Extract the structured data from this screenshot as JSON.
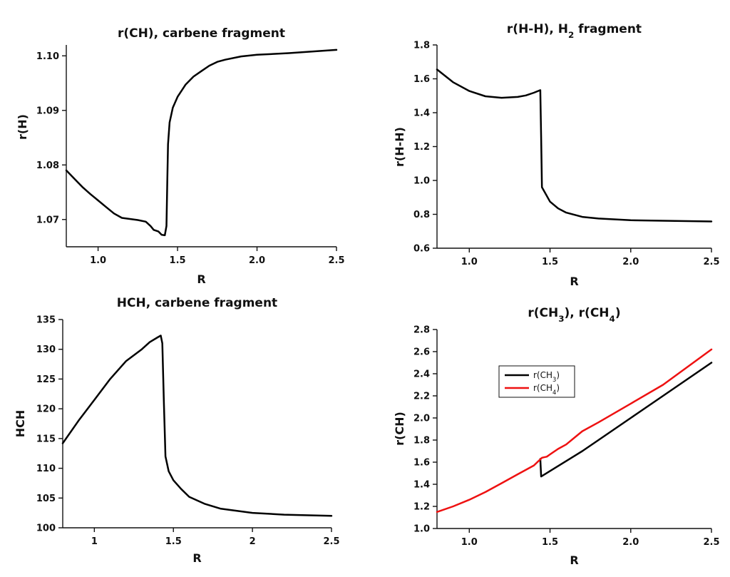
{
  "chart_data": [
    {
      "type": "line",
      "title": "r(CH), carbene fragment",
      "xlabel": "R",
      "ylabel": "r(H)",
      "xlim": [
        0.8,
        2.5
      ],
      "ylim": [
        1.065,
        1.102
      ],
      "xticks": [
        1.0,
        1.5,
        2.0,
        2.5
      ],
      "xtick_labels": [
        "1.0",
        "1.5",
        "2.0",
        "2.5"
      ],
      "yticks": [
        1.07,
        1.08,
        1.09,
        1.1
      ],
      "ytick_labels": [
        "1.07",
        "1.08",
        "1.09",
        "1.10"
      ],
      "series": [
        {
          "name": "r(CH)",
          "color": "#000000",
          "x": [
            0.8,
            0.85,
            0.9,
            0.95,
            1.0,
            1.05,
            1.1,
            1.15,
            1.2,
            1.25,
            1.3,
            1.33,
            1.35,
            1.38,
            1.4,
            1.42,
            1.43,
            1.435,
            1.44,
            1.45,
            1.47,
            1.5,
            1.55,
            1.6,
            1.65,
            1.7,
            1.75,
            1.8,
            1.9,
            2.0,
            2.2,
            2.5
          ],
          "y": [
            1.079,
            1.0775,
            1.076,
            1.0747,
            1.0735,
            1.0723,
            1.0711,
            1.0703,
            1.0701,
            1.0699,
            1.0696,
            1.0688,
            1.0681,
            1.0678,
            1.0672,
            1.0671,
            1.0688,
            1.0765,
            1.0838,
            1.0878,
            1.0905,
            1.0925,
            1.0947,
            1.0962,
            1.0972,
            1.0982,
            1.0989,
            1.0993,
            1.0999,
            1.1002,
            1.1005,
            1.1011
          ]
        }
      ]
    },
    {
      "type": "line",
      "title": "r(H-H), H",
      "title_sub": "2",
      "title_suffix": " fragment",
      "xlabel": "R",
      "ylabel": "r(H-H)",
      "xlim": [
        0.8,
        2.5
      ],
      "ylim": [
        0.6,
        1.8
      ],
      "xticks": [
        1.0,
        1.5,
        2.0,
        2.5
      ],
      "xtick_labels": [
        "1.0",
        "1.5",
        "2.0",
        "2.5"
      ],
      "yticks": [
        0.6,
        0.8,
        1.0,
        1.2,
        1.4,
        1.6,
        1.8
      ],
      "ytick_labels": [
        "0.6",
        "0.8",
        "1.0",
        "1.2",
        "1.4",
        "1.6",
        "1.8"
      ],
      "series": [
        {
          "name": "r(H-H)",
          "color": "#000000",
          "x": [
            0.8,
            0.9,
            1.0,
            1.1,
            1.2,
            1.3,
            1.35,
            1.4,
            1.44,
            1.445,
            1.45,
            1.5,
            1.55,
            1.6,
            1.7,
            1.8,
            2.0,
            2.2,
            2.5
          ],
          "y": [
            1.655,
            1.58,
            1.528,
            1.497,
            1.488,
            1.493,
            1.502,
            1.518,
            1.533,
            1.25,
            0.96,
            0.875,
            0.835,
            0.81,
            0.785,
            0.775,
            0.765,
            0.762,
            0.758
          ]
        }
      ]
    },
    {
      "type": "line",
      "title": "HCH, carbene fragment",
      "xlabel": "R",
      "ylabel": "HCH",
      "xlim": [
        0.8,
        2.5
      ],
      "ylim": [
        100,
        135
      ],
      "xticks": [
        1.0,
        1.5,
        2.0,
        2.5
      ],
      "xtick_labels": [
        "1",
        "1.5",
        "2",
        "2.5"
      ],
      "yticks": [
        100,
        105,
        110,
        115,
        120,
        125,
        130,
        135
      ],
      "ytick_labels": [
        "100",
        "105",
        "110",
        "115",
        "120",
        "125",
        "130",
        "135"
      ],
      "series": [
        {
          "name": "HCH",
          "color": "#000000",
          "x": [
            0.8,
            0.9,
            1.0,
            1.1,
            1.2,
            1.3,
            1.35,
            1.4,
            1.42,
            1.43,
            1.44,
            1.45,
            1.47,
            1.5,
            1.55,
            1.6,
            1.7,
            1.8,
            2.0,
            2.2,
            2.5
          ],
          "y": [
            114.2,
            118.0,
            121.5,
            125.0,
            128.0,
            130.0,
            131.2,
            132.0,
            132.3,
            131.0,
            121.0,
            112.0,
            109.5,
            108.0,
            106.5,
            105.2,
            104.0,
            103.2,
            102.5,
            102.2,
            102.0
          ]
        }
      ]
    },
    {
      "type": "line",
      "title": "r(CH",
      "title_sub": "3",
      "title_mid": "), r(CH",
      "title_sub2": "4",
      "title_suffix": ")",
      "xlabel": "R",
      "ylabel": "r(CH)",
      "xlim": [
        0.8,
        2.5
      ],
      "ylim": [
        1.0,
        2.8
      ],
      "xticks": [
        1.0,
        1.5,
        2.0,
        2.5
      ],
      "xtick_labels": [
        "1.0",
        "1.5",
        "2.0",
        "2.5"
      ],
      "yticks": [
        1.0,
        1.2,
        1.4,
        1.6,
        1.8,
        2.0,
        2.2,
        2.4,
        2.6,
        2.8
      ],
      "ytick_labels": [
        "1.0",
        "1.2",
        "1.4",
        "1.6",
        "1.8",
        "2.0",
        "2.2",
        "2.4",
        "2.6",
        "2.8"
      ],
      "legend": {
        "placement": "upper-left",
        "entries": [
          {
            "label": "r(CH",
            "sub": "3",
            "suffix": ")",
            "color": "#000000"
          },
          {
            "label": "r(CH",
            "sub": "4",
            "suffix": ")",
            "color": "#ee1111"
          }
        ]
      },
      "series": [
        {
          "name": "r(CH3)",
          "color": "#000000",
          "x": [
            1.44,
            1.445,
            1.5,
            1.6,
            1.7,
            1.8,
            2.0,
            2.2,
            2.5
          ],
          "y": [
            1.63,
            1.47,
            1.52,
            1.61,
            1.7,
            1.8,
            2.0,
            2.2,
            2.5
          ]
        },
        {
          "name": "r(CH4)",
          "color": "#ee1111",
          "x": [
            0.8,
            0.9,
            1.0,
            1.1,
            1.2,
            1.3,
            1.4,
            1.45,
            1.48,
            1.5,
            1.55,
            1.6,
            1.65,
            1.7,
            1.8,
            2.0,
            2.2,
            2.5
          ],
          "y": [
            1.15,
            1.2,
            1.26,
            1.33,
            1.41,
            1.49,
            1.57,
            1.64,
            1.65,
            1.67,
            1.72,
            1.76,
            1.82,
            1.88,
            1.96,
            2.13,
            2.3,
            2.62
          ]
        }
      ]
    }
  ]
}
